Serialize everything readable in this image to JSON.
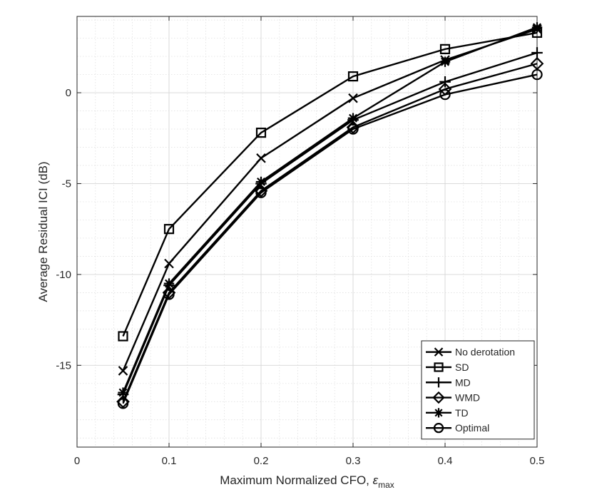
{
  "chart_data": {
    "type": "line",
    "title": "",
    "xlabel_main": "Maximum Normalized CFO, ",
    "xlabel_symbol": "ε",
    "xlabel_sub": "max",
    "ylabel": "Average Residual ICI (dB)",
    "xlim": [
      0,
      0.5
    ],
    "ylim": [
      -19.5,
      4.2
    ],
    "grid": true,
    "minor_grid": true,
    "x_ticks": [
      0,
      0.1,
      0.2,
      0.3,
      0.4,
      0.5
    ],
    "x_tick_labels": [
      "0",
      "0.1",
      "0.2",
      "0.3",
      "0.4",
      "0.5"
    ],
    "y_ticks": [
      -15,
      -10,
      -5,
      0
    ],
    "y_tick_labels": [
      "-15",
      "-10",
      "-5",
      "0"
    ],
    "legend_position": "bottom-right",
    "x": [
      0.05,
      0.1,
      0.2,
      0.3,
      0.4,
      0.5
    ],
    "series": [
      {
        "name": "No derotation",
        "marker": "x",
        "values": [
          -15.3,
          -9.4,
          -3.6,
          -0.3,
          1.8,
          3.5
        ]
      },
      {
        "name": "SD",
        "marker": "square",
        "values": [
          -13.4,
          -7.5,
          -2.2,
          0.9,
          2.4,
          3.3
        ]
      },
      {
        "name": "MD",
        "marker": "plus",
        "values": [
          -16.6,
          -10.6,
          -5.0,
          -1.5,
          0.6,
          2.2
        ]
      },
      {
        "name": "WMD",
        "marker": "diamond",
        "values": [
          -17.0,
          -11.0,
          -5.4,
          -1.9,
          0.2,
          1.6
        ]
      },
      {
        "name": "TD",
        "marker": "asterisk",
        "values": [
          -16.5,
          -10.5,
          -4.9,
          -1.4,
          1.7,
          3.6
        ]
      },
      {
        "name": "Optimal",
        "marker": "circle",
        "values": [
          -17.1,
          -11.1,
          -5.5,
          -2.0,
          -0.1,
          1.0
        ]
      }
    ]
  }
}
